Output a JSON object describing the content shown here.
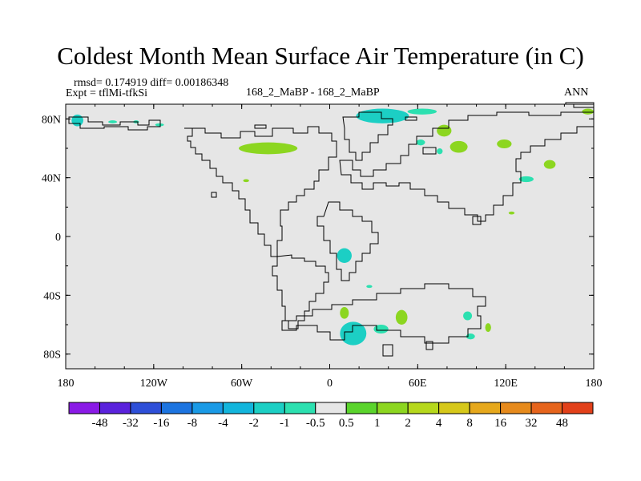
{
  "chart_data": {
    "type": "heatmap",
    "title": "Coldest Month Mean Surface Air Temperature (in C)",
    "stats_line": "rmsd= 0.174919 diff= 0.00186348",
    "experiment_label": "Expt = tflMi-tfkSi",
    "case_label": "168_2_MaBP - 168_2_MaBP",
    "season": "ANN",
    "x_axis": {
      "min": -180,
      "max": 180,
      "ticks": [
        -180,
        -120,
        -60,
        0,
        60,
        120,
        180
      ],
      "tick_labels": [
        "180",
        "120W",
        "60W",
        "0",
        "60E",
        "120E",
        "180"
      ]
    },
    "y_axis": {
      "min": -90,
      "max": 90,
      "ticks": [
        80,
        40,
        0,
        -40,
        -80
      ],
      "tick_labels": [
        "80N",
        "40N",
        "0",
        "40S",
        "80S"
      ]
    },
    "colorbar": {
      "colors": [
        "#8a1ae6",
        "#5a22dc",
        "#2e4fd8",
        "#1c74e0",
        "#1a9ae6",
        "#12b5dc",
        "#1ccfc4",
        "#2ce0b0",
        "#e6e6e6",
        "#5ad42c",
        "#8cd620",
        "#b6d81c",
        "#d6c81a",
        "#e6a81c",
        "#e68a1c",
        "#e6641c",
        "#e2401a"
      ],
      "labels": [
        "-48",
        "-32",
        "-16",
        "-8",
        "-4",
        "-2",
        "-1",
        "-0.5",
        "0.5",
        "1",
        "2",
        "4",
        "8",
        "16",
        "32",
        "48"
      ]
    },
    "anomaly_patches": [
      {
        "lon": -172,
        "lat": 79,
        "rlon": 4,
        "rlat": 4,
        "value": -2
      },
      {
        "lon": -148,
        "lat": 78,
        "rlon": 3,
        "rlat": 1,
        "value": -1
      },
      {
        "lon": -132,
        "lat": 78,
        "rlon": 2,
        "rlat": 1,
        "value": -1
      },
      {
        "lon": -116,
        "lat": 76,
        "rlon": 3,
        "rlat": 1,
        "value": -1
      },
      {
        "lon": -42,
        "lat": 60,
        "rlon": 20,
        "rlat": 4,
        "value": 1
      },
      {
        "lon": -57,
        "lat": 38,
        "rlon": 2,
        "rlat": 1,
        "value": 1
      },
      {
        "lon": 36,
        "lat": 82,
        "rlon": 18,
        "rlat": 5,
        "value": -2
      },
      {
        "lon": 63,
        "lat": 85,
        "rlon": 10,
        "rlat": 2,
        "value": -1
      },
      {
        "lon": 78,
        "lat": 72,
        "rlon": 5,
        "rlat": 4,
        "value": 1
      },
      {
        "lon": 62,
        "lat": 64,
        "rlon": 3,
        "rlat": 2,
        "value": -1
      },
      {
        "lon": 88,
        "lat": 61,
        "rlon": 6,
        "rlat": 4,
        "value": 1
      },
      {
        "lon": 119,
        "lat": 63,
        "rlon": 5,
        "rlat": 3,
        "value": 1
      },
      {
        "lon": 75,
        "lat": 58,
        "rlon": 2,
        "rlat": 2,
        "value": -1
      },
      {
        "lon": 150,
        "lat": 49,
        "rlon": 4,
        "rlat": 3,
        "value": 1
      },
      {
        "lon": 176,
        "lat": 85,
        "rlon": 4,
        "rlat": 2,
        "value": 1
      },
      {
        "lon": 134,
        "lat": 39,
        "rlon": 5,
        "rlat": 2,
        "value": -1
      },
      {
        "lon": 124,
        "lat": 16,
        "rlon": 2,
        "rlat": 1,
        "value": 1
      },
      {
        "lon": 10,
        "lat": -13,
        "rlon": 5,
        "rlat": 5,
        "value": -2
      },
      {
        "lon": 27,
        "lat": -34,
        "rlon": 2,
        "rlat": 1,
        "value": -1
      },
      {
        "lon": 10,
        "lat": -52,
        "rlon": 3,
        "rlat": 4,
        "value": 1
      },
      {
        "lon": 15,
        "lat": -62,
        "rlon": 2,
        "rlat": 2,
        "value": 1
      },
      {
        "lon": 16,
        "lat": -66,
        "rlon": 9,
        "rlat": 8,
        "value": -2
      },
      {
        "lon": 35,
        "lat": -63,
        "rlon": 5,
        "rlat": 3,
        "value": -1
      },
      {
        "lon": 49,
        "lat": -55,
        "rlon": 4,
        "rlat": 5,
        "value": 1
      },
      {
        "lon": 94,
        "lat": -54,
        "rlon": 3,
        "rlat": 3,
        "value": -1
      },
      {
        "lon": 108,
        "lat": -62,
        "rlon": 2,
        "rlat": 3,
        "value": 1
      },
      {
        "lon": 96,
        "lat": -68,
        "rlon": 3,
        "rlat": 2,
        "value": -1
      }
    ]
  }
}
